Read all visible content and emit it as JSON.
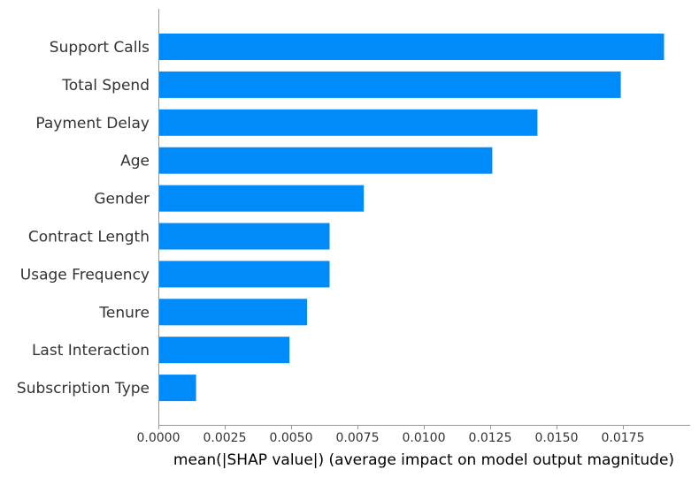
{
  "chart_data": {
    "type": "bar",
    "orientation": "horizontal",
    "categories": [
      "Support Calls",
      "Total Spend",
      "Payment Delay",
      "Age",
      "Gender",
      "Contract Length",
      "Usage Frequency",
      "Tenure",
      "Last Interaction",
      "Subscription Type"
    ],
    "values": [
      0.01905,
      0.01742,
      0.01428,
      0.01258,
      0.00774,
      0.00645,
      0.00645,
      0.0056,
      0.00494,
      0.00142
    ],
    "xlabel": "mean(|SHAP value|) (average impact on model output magnitude)",
    "ylabel": "",
    "xlim": [
      0,
      0.02
    ],
    "xticks": [
      "0.0000",
      "0.0025",
      "0.0050",
      "0.0075",
      "0.0100",
      "0.0125",
      "0.0150",
      "0.0175"
    ],
    "bar_color": "#008bfb",
    "grid": false
  }
}
